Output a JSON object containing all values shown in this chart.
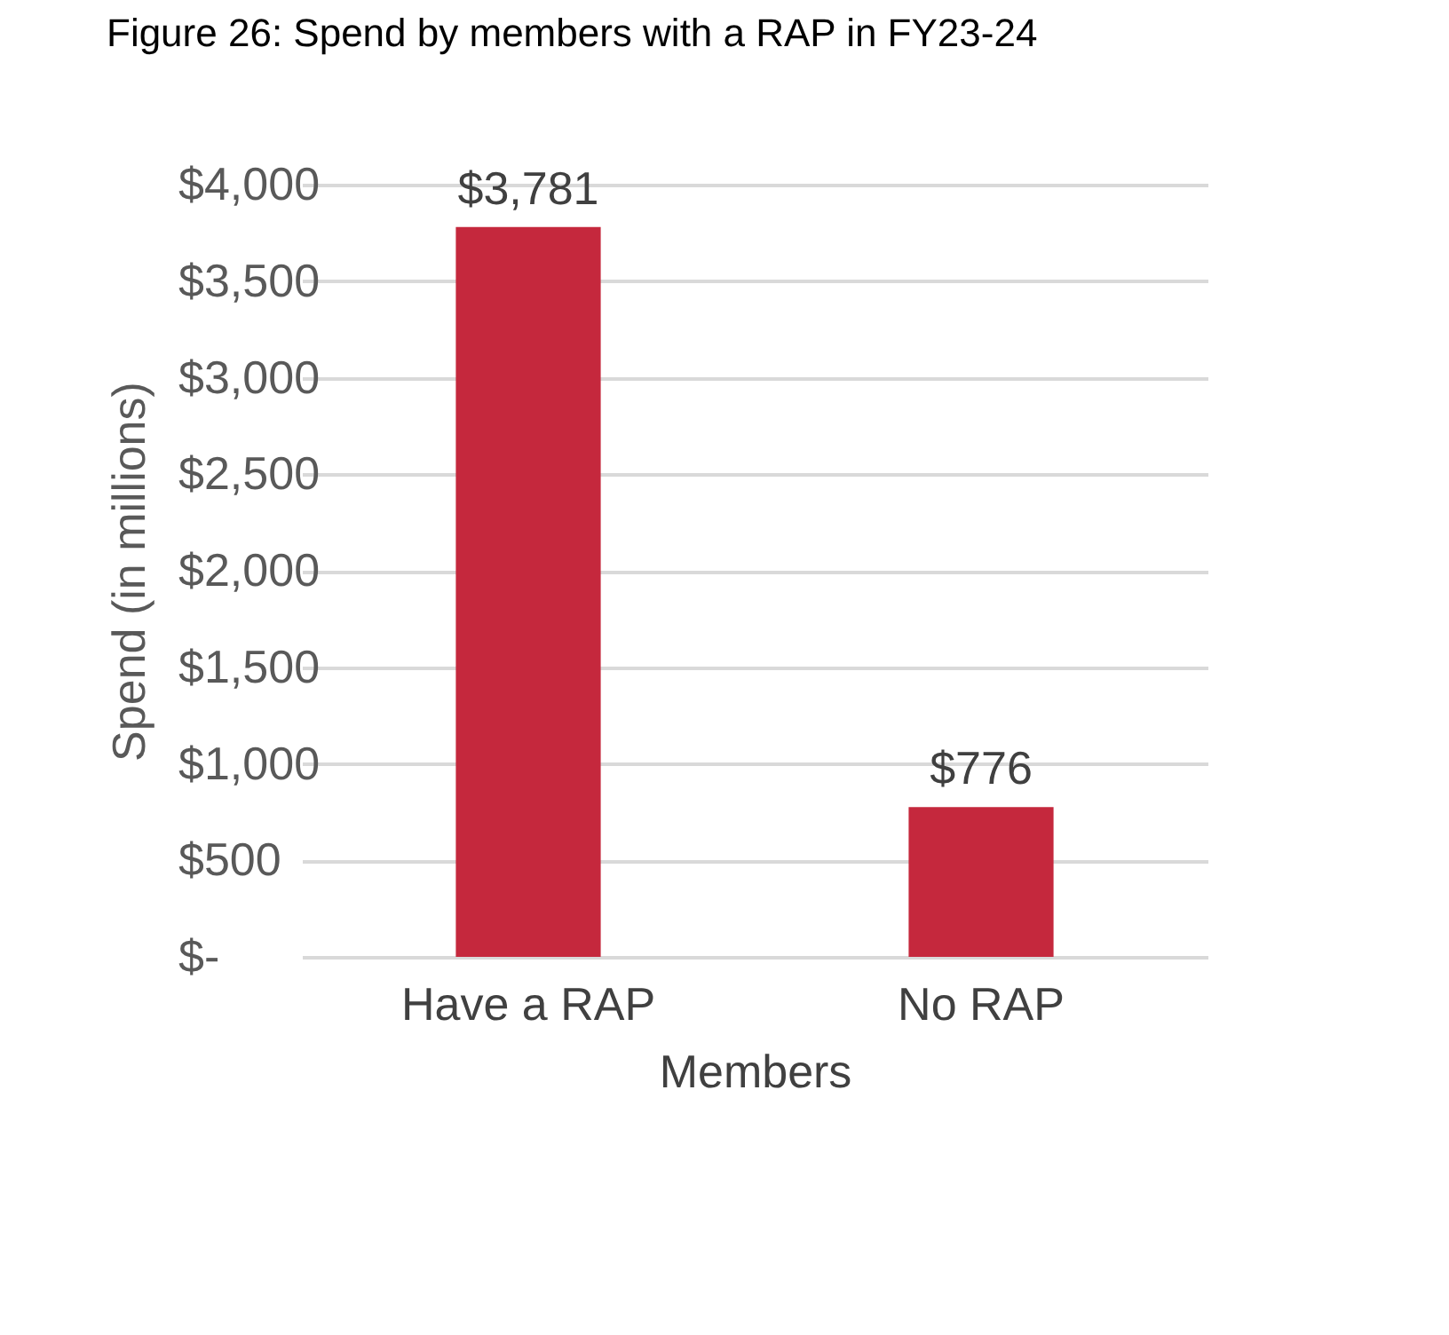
{
  "chart_data": {
    "type": "bar",
    "title": "Figure 26: Spend by members with a RAP in FY23-24",
    "xlabel": "Members",
    "ylabel": "Spend (in millions)",
    "categories": [
      "Have a RAP",
      "No RAP"
    ],
    "values": [
      3781,
      776
    ],
    "color": "#c5283d",
    "value_labels": [
      "$3,781",
      "$776"
    ],
    "ylim": [
      0,
      4000
    ],
    "yticks": [
      {
        "value": 0,
        "label": "$-"
      },
      {
        "value": 500,
        "label": "$500"
      },
      {
        "value": 1000,
        "label": "$1,000"
      },
      {
        "value": 1500,
        "label": "$1,500"
      },
      {
        "value": 2000,
        "label": "$2,000"
      },
      {
        "value": 2500,
        "label": "$2,500"
      },
      {
        "value": 3000,
        "label": "$3,000"
      },
      {
        "value": 3500,
        "label": "$3,500"
      },
      {
        "value": 4000,
        "label": "$4,000"
      }
    ],
    "grid": "y"
  }
}
